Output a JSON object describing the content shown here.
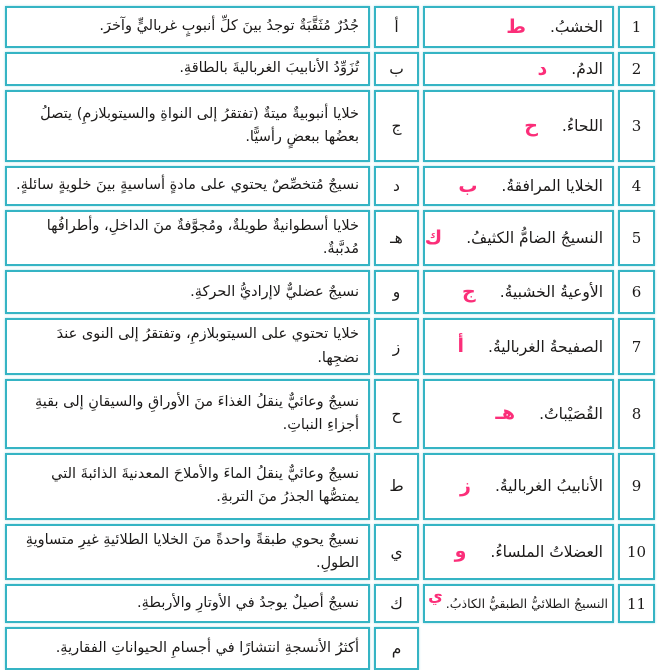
{
  "colors": {
    "table_border": "#35b4c4",
    "answer_pink": "#fb2e79",
    "text": "#1c1a19"
  },
  "table": {
    "rows": [
      {
        "num": "1",
        "term": "الخشبُ.",
        "answer": "ط",
        "letter": "أ",
        "definition": "جُدُرٌ مُثَقَّبَةٌ توجدُ بينَ كلِّ أنبوبٍ غرباليٍّ وآخرَ."
      },
      {
        "num": "2",
        "term": "الدمُ.",
        "answer": "د",
        "letter": "ب",
        "definition": "تُزَوِّدُ الأنابيبَ الغرباليةَ بالطاقةِ."
      },
      {
        "num": "3",
        "term": "اللحاءُ.",
        "answer": "ح",
        "letter": "ج",
        "definition": "خلايا أنبوبيةٌ ميتةٌ (تفتقرُ إلى النواةِ والسيتوبلازمِ) يتصلُ بعضُها ببعضٍ رأسيًّا."
      },
      {
        "num": "4",
        "term": "الخلايا المرافقةُ.",
        "answer": "ب",
        "letter": "د",
        "definition": "نسيجٌ مُتخصِّصٌ يحتوي على مادةٍ أساسيةٍ بينَ خلويةٍ سائلةٍ."
      },
      {
        "num": "5",
        "term": "النسيجُ الضامُّ الكثيفُ.",
        "answer": "ك",
        "letter": "هـ",
        "definition": "خلايا أسطوانيةٌ طويلةٌ، ومُجوَّفةٌ منَ الداخلِ، وأطرافُها مُدبَّبةٌ."
      },
      {
        "num": "6",
        "term": "الأوعيةُ الخشبيةُ.",
        "answer": "ج",
        "letter": "و",
        "definition": "نسيجٌ عضليٌّ لاإراديُّ الحركةِ."
      },
      {
        "num": "7",
        "term": "الصفيحةُ الغرباليةُ.",
        "answer": "أ",
        "letter": "ز",
        "definition": "خلايا تحتوي على السيتوبلازمِ، وتفتقرُ إلى النوى عندَ نضجِها."
      },
      {
        "num": "8",
        "term": "القُصَيْباتُ.",
        "answer": "هـ",
        "letter": "ح",
        "definition": "نسيجٌ وعائيٌّ ينقلُ الغذاءَ منَ الأوراقِ والسيقانِ إلى بقيةِ أجزاءِ النباتِ."
      },
      {
        "num": "9",
        "term": "الأنابيبُ الغرباليةُ.",
        "answer": "ز",
        "letter": "ط",
        "definition": "نسيجٌ وعائيٌّ ينقلُ الماءَ والأملاحَ المعدنيةَ الذائبةَ التي يمتصُّها الجذرُ منَ التربةِ."
      },
      {
        "num": "10",
        "term": "العضلاتُ الملساءُ.",
        "answer": "و",
        "letter": "ي",
        "definition": "نسيجٌ يحوي طبقةً واحدةً منَ الخلايا الطلائيةِ غيرِ متساويةِ الطولِ."
      },
      {
        "num": "11",
        "term": "النسيجُ الطلائيُّ الطبقيُّ الكاذبُ.",
        "answer": "ي",
        "answer_raised": true,
        "letter": "ك",
        "definition": "نسيجٌ أصيلٌ يوجدُ في الأوتارِ والأربطةِ."
      },
      {
        "num": "",
        "term": "",
        "answer": "",
        "letter": "م",
        "definition": "أكثرُ الأنسجةِ انتشارًا في أجسامِ الحيواناتِ الفقاريةِ."
      }
    ]
  }
}
